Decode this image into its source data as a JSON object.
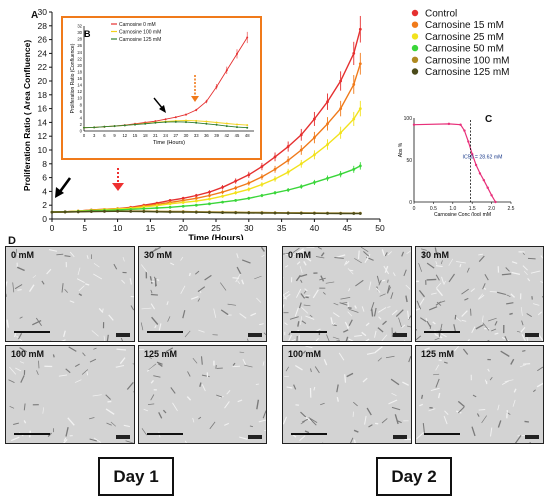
{
  "chart_data": [
    {
      "panel": "A",
      "type": "line",
      "xlabel": "Time (Hours)",
      "ylabel": "Proliferation Ratio ( Area Confluence)",
      "xlim": [
        0,
        50
      ],
      "ylim": [
        0,
        30
      ],
      "xticks": [
        0,
        5,
        10,
        15,
        20,
        25,
        30,
        35,
        40,
        45,
        50
      ],
      "yticks": [
        0,
        2,
        4,
        6,
        8,
        10,
        12,
        14,
        16,
        18,
        20,
        22,
        24,
        26,
        28,
        30
      ],
      "grid": false,
      "legend": "top-right",
      "x": [
        0,
        2,
        4,
        6,
        8,
        10,
        12,
        14,
        16,
        18,
        20,
        22,
        24,
        26,
        28,
        30,
        32,
        34,
        36,
        38,
        40,
        42,
        44,
        46,
        47
      ],
      "series": [
        {
          "name": "Control",
          "color": "#e53030",
          "values": [
            1.0,
            1.05,
            1.15,
            1.3,
            1.4,
            1.5,
            1.7,
            2.0,
            2.3,
            2.7,
            3.0,
            3.4,
            3.9,
            4.6,
            5.5,
            6.4,
            7.6,
            9.0,
            10.5,
            12.2,
            14.5,
            17.0,
            20.0,
            24.0,
            27.5
          ]
        },
        {
          "name": "Carnosine 15 mM",
          "color": "#f07a1a",
          "values": [
            1.0,
            1.05,
            1.15,
            1.3,
            1.4,
            1.5,
            1.6,
            1.9,
            2.1,
            2.4,
            2.7,
            3.0,
            3.4,
            3.9,
            4.5,
            5.2,
            6.1,
            7.2,
            8.5,
            10.0,
            11.8,
            13.8,
            16.0,
            19.5,
            22.5
          ]
        },
        {
          "name": "Carnosine 25 mM",
          "color": "#f2e21c",
          "values": [
            1.0,
            1.05,
            1.15,
            1.25,
            1.35,
            1.45,
            1.55,
            1.75,
            1.95,
            2.2,
            2.4,
            2.6,
            2.9,
            3.3,
            3.8,
            4.3,
            5.0,
            5.8,
            6.8,
            8.0,
            9.3,
            10.8,
            12.5,
            14.5,
            16.0
          ]
        },
        {
          "name": "Carnosine 50 mM",
          "color": "#3ad63a",
          "values": [
            1.0,
            1.05,
            1.1,
            1.2,
            1.25,
            1.3,
            1.4,
            1.5,
            1.6,
            1.7,
            1.85,
            2.0,
            2.2,
            2.45,
            2.7,
            3.0,
            3.4,
            3.8,
            4.2,
            4.7,
            5.3,
            5.9,
            6.5,
            7.2,
            7.7
          ]
        },
        {
          "name": "Carnosine 100 mM",
          "color": "#b08a20",
          "values": [
            1.0,
            1.02,
            1.05,
            1.1,
            1.12,
            1.15,
            1.15,
            1.14,
            1.12,
            1.1,
            1.08,
            1.05,
            1.02,
            1.0,
            0.98,
            0.96,
            0.94,
            0.92,
            0.9,
            0.9,
            0.88,
            0.86,
            0.85,
            0.84,
            0.84
          ]
        },
        {
          "name": "Carnosine 125 mM",
          "color": "#4b4b1a",
          "values": [
            1.0,
            1.02,
            1.04,
            1.08,
            1.1,
            1.12,
            1.1,
            1.08,
            1.05,
            1.02,
            1.0,
            0.98,
            0.95,
            0.92,
            0.9,
            0.88,
            0.86,
            0.85,
            0.84,
            0.83,
            0.82,
            0.81,
            0.8,
            0.8,
            0.8
          ]
        }
      ]
    },
    {
      "panel": "B",
      "type": "line",
      "xlabel": "Time (Hours)",
      "ylabel": "Proliferation Ratio (Confluence)",
      "xlim": [
        0,
        50
      ],
      "ylim": [
        0,
        32
      ],
      "xticks": [
        0,
        3,
        6,
        9,
        12,
        15,
        18,
        21,
        24,
        27,
        30,
        33,
        36,
        39,
        42,
        45,
        48
      ],
      "yticks": [
        0,
        2,
        4,
        6,
        8,
        10,
        12,
        14,
        16,
        18,
        20,
        22,
        24,
        26,
        28,
        30,
        32
      ],
      "grid": false,
      "legend": "top-left",
      "x": [
        0,
        3,
        6,
        9,
        12,
        15,
        18,
        21,
        24,
        27,
        30,
        33,
        36,
        39,
        42,
        45,
        48
      ],
      "series": [
        {
          "name": "Carnosine 0 mM",
          "color": "#e53030",
          "values": [
            1.0,
            1.1,
            1.3,
            1.5,
            1.8,
            2.2,
            2.6,
            3.0,
            3.6,
            4.2,
            5.0,
            6.4,
            9.0,
            13.5,
            18.5,
            23.5,
            28.5
          ]
        },
        {
          "name": "Carnosine 100 mM",
          "color": "#f2d21c",
          "values": [
            1.0,
            1.1,
            1.3,
            1.5,
            1.7,
            2.0,
            2.3,
            2.6,
            2.9,
            3.1,
            3.2,
            3.1,
            2.9,
            2.6,
            2.3,
            2.0,
            1.8
          ]
        },
        {
          "name": "Carnosine 125 mM",
          "color": "#2e7d32",
          "values": [
            1.0,
            1.1,
            1.3,
            1.5,
            1.7,
            1.95,
            2.2,
            2.5,
            2.7,
            2.8,
            2.7,
            2.5,
            2.2,
            1.9,
            1.5,
            1.2,
            1.0
          ]
        }
      ]
    },
    {
      "panel": "C",
      "type": "line",
      "xlabel": "Carnosine Conc (log) mM",
      "ylabel": "Abs %",
      "xlim": [
        0,
        2.5
      ],
      "ylim": [
        0,
        100
      ],
      "xticks": [
        0,
        0.5,
        1.0,
        1.5,
        2.0,
        2.5
      ],
      "xtick_labels": [
        "0",
        "0.5",
        "1.0",
        "1.5",
        "2.0",
        "2.5"
      ],
      "yticks": [
        0,
        50,
        100
      ],
      "grid": false,
      "annotation": "IC50 = 28.62 mM",
      "ic50_log": 1.457,
      "x": [
        0.0,
        0.9,
        1.2,
        1.3,
        1.4,
        1.5,
        1.6,
        1.7,
        1.8,
        1.9,
        2.0,
        2.1
      ],
      "values": [
        92,
        93,
        92,
        85,
        72,
        57,
        44,
        34,
        26,
        17,
        8,
        0
      ]
    }
  ],
  "panels": {
    "a": "A",
    "b": "B",
    "c": "C",
    "d": "D"
  },
  "micrographs": [
    {
      "label": "0 mM",
      "day": 1
    },
    {
      "label": "30 mM",
      "day": 1
    },
    {
      "label": "100 mM",
      "day": 1
    },
    {
      "label": "125 mM",
      "day": 1
    },
    {
      "label": "0 mM",
      "day": 2
    },
    {
      "label": "30 mM",
      "day": 2
    },
    {
      "label": "100 mM",
      "day": 2
    },
    {
      "label": "125 mM",
      "day": 2
    }
  ],
  "days": {
    "day1": "Day 1",
    "day2": "Day 2"
  }
}
